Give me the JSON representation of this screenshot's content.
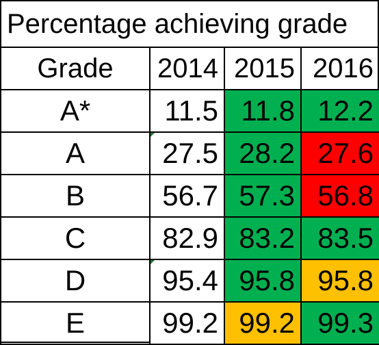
{
  "title": "Percentage achieving grade",
  "headers": {
    "grade": "Grade",
    "years": [
      "2014",
      "2015",
      "2016"
    ]
  },
  "colors": {
    "green": "#00b050",
    "red": "#ff0000",
    "amber": "#ffc000",
    "white": "#ffffff"
  },
  "rows": [
    {
      "grade": "A*",
      "values": [
        "11.5",
        "11.8",
        "12.2"
      ],
      "fills": [
        "white",
        "green",
        "green"
      ],
      "comment_marker": false
    },
    {
      "grade": "A",
      "values": [
        "27.5",
        "28.2",
        "27.6"
      ],
      "fills": [
        "white",
        "green",
        "red"
      ],
      "comment_marker": true
    },
    {
      "grade": "B",
      "values": [
        "56.7",
        "57.3",
        "56.8"
      ],
      "fills": [
        "white",
        "green",
        "red"
      ],
      "comment_marker": false
    },
    {
      "grade": "C",
      "values": [
        "82.9",
        "83.2",
        "83.5"
      ],
      "fills": [
        "white",
        "green",
        "green"
      ],
      "comment_marker": false
    },
    {
      "grade": "D",
      "values": [
        "95.4",
        "95.8",
        "95.8"
      ],
      "fills": [
        "white",
        "green",
        "amber"
      ],
      "comment_marker": true
    },
    {
      "grade": "E",
      "values": [
        "99.2",
        "99.2",
        "99.3"
      ],
      "fills": [
        "white",
        "amber",
        "green"
      ],
      "comment_marker": false
    }
  ]
}
